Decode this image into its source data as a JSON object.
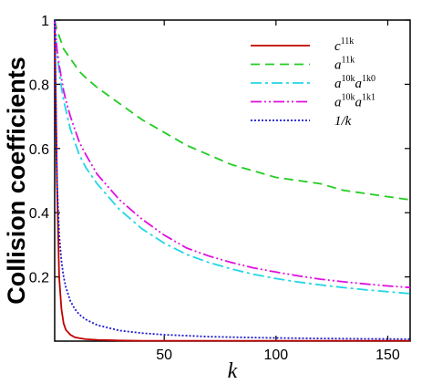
{
  "chart_data": {
    "type": "line",
    "xlabel": "k",
    "ylabel": "Collision coefficients",
    "xlim": [
      1,
      160
    ],
    "ylim": [
      0,
      1
    ],
    "xticks": [
      50,
      100,
      150
    ],
    "yticks": [
      0.2,
      0.4,
      0.6,
      0.8,
      1
    ],
    "xtick_labels": [
      "50",
      "100",
      "150"
    ],
    "ytick_labels": [
      "0.2",
      "0.4",
      "0.6",
      "0.8",
      "1"
    ],
    "grid": false,
    "legend_position": "top-right",
    "x": [
      1,
      2,
      3,
      4,
      5,
      6,
      8,
      10,
      12,
      15,
      20,
      30,
      40,
      50,
      60,
      70,
      80,
      90,
      100,
      110,
      120,
      130,
      140,
      150,
      160
    ],
    "series": [
      {
        "name": "c11k",
        "legend": {
          "base": "c",
          "sup": "11k"
        },
        "color": "#c00000",
        "dash": "solid",
        "values": [
          1,
          0.5,
          0.2,
          0.1,
          0.055,
          0.035,
          0.02,
          0.012,
          0.009,
          0.006,
          0.004,
          0.002,
          0.001,
          0.001,
          0.001,
          0.001,
          0.001,
          0.001,
          0.001,
          0.001,
          0.001,
          0.001,
          0.001,
          0.001,
          0.001
        ]
      },
      {
        "name": "a11k",
        "legend": {
          "base": "a",
          "sup": "11k"
        },
        "color": "#22cc22",
        "dash": "10,6",
        "values": [
          1,
          0.97,
          0.95,
          0.93,
          0.91,
          0.9,
          0.88,
          0.86,
          0.84,
          0.82,
          0.79,
          0.74,
          0.69,
          0.65,
          0.61,
          0.58,
          0.55,
          0.53,
          0.51,
          0.5,
          0.49,
          0.47,
          0.46,
          0.45,
          0.44
        ]
      },
      {
        "name": "a10ka1k0",
        "legend": {
          "base": "a",
          "sup": "10k",
          "base2": "a",
          "sup2": "1k0"
        },
        "color": "#22d6e6",
        "dash": "12,4,3,4",
        "values": [
          1,
          0.9,
          0.84,
          0.79,
          0.75,
          0.72,
          0.66,
          0.62,
          0.58,
          0.54,
          0.49,
          0.41,
          0.35,
          0.305,
          0.27,
          0.245,
          0.225,
          0.208,
          0.195,
          0.184,
          0.175,
          0.167,
          0.16,
          0.154,
          0.148
        ]
      },
      {
        "name": "a10ka1k1",
        "legend": {
          "base": "a",
          "sup": "10k",
          "base2": "a",
          "sup2": "1k1"
        },
        "color": "#e010e0",
        "dash": "12,3,2,3,2,3",
        "values": [
          1,
          0.91,
          0.86,
          0.82,
          0.78,
          0.75,
          0.7,
          0.66,
          0.62,
          0.58,
          0.52,
          0.44,
          0.38,
          0.33,
          0.29,
          0.265,
          0.245,
          0.228,
          0.215,
          0.203,
          0.193,
          0.185,
          0.178,
          0.172,
          0.167
        ]
      },
      {
        "name": "1/k",
        "legend": {
          "base": "1/k"
        },
        "color": "#1a1acc",
        "dash": "2,2",
        "values": [
          1,
          0.5,
          0.333,
          0.25,
          0.2,
          0.167,
          0.125,
          0.1,
          0.083,
          0.067,
          0.05,
          0.033,
          0.025,
          0.02,
          0.017,
          0.014,
          0.0125,
          0.011,
          0.01,
          0.009,
          0.0083,
          0.0077,
          0.0071,
          0.0067,
          0.0063
        ]
      }
    ]
  }
}
